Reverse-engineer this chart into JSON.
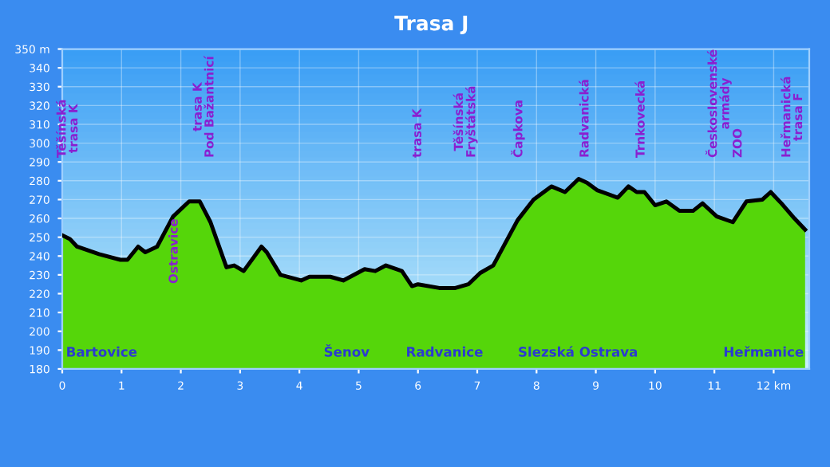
{
  "chart_data": {
    "type": "area",
    "title": "Trasa J",
    "x": [
      0,
      0.13,
      0.25,
      0.62,
      0.98,
      1.1,
      1.28,
      1.4,
      1.6,
      1.87,
      2.14,
      2.32,
      2.5,
      2.77,
      2.9,
      3.06,
      3.36,
      3.45,
      3.68,
      4.03,
      4.17,
      4.52,
      4.74,
      5.1,
      5.28,
      5.46,
      5.73,
      5.9,
      6.0,
      6.36,
      6.63,
      6.85,
      7.05,
      7.27,
      7.68,
      7.95,
      8.25,
      8.48,
      8.71,
      8.85,
      9.02,
      9.37,
      9.55,
      9.69,
      9.82,
      10.0,
      10.19,
      10.41,
      10.64,
      10.8,
      11.04,
      11.31,
      11.54,
      11.81,
      11.95,
      12.13,
      12.35,
      12.53
    ],
    "series": [
      {
        "color": "#55d60a",
        "values": [
          251,
          249,
          245,
          241,
          238,
          238,
          245,
          242,
          245,
          261,
          269,
          269,
          258,
          234,
          235,
          232,
          245,
          242,
          230,
          227,
          229,
          229,
          227,
          233,
          232,
          235,
          232,
          224,
          225,
          223,
          223,
          225,
          231,
          235,
          259,
          270,
          277,
          274,
          281,
          279,
          275,
          271,
          277,
          274,
          274,
          267,
          269,
          264,
          264,
          268,
          261,
          258,
          269,
          270,
          274,
          268,
          260,
          254
        ]
      }
    ],
    "xlim": [
      0,
      12.6
    ],
    "xticks": [
      0,
      1,
      2,
      3,
      4,
      5,
      6,
      7,
      8,
      9,
      10,
      11,
      {
        "value": 12,
        "label": "12 km"
      }
    ],
    "ylim": [
      180,
      350
    ],
    "yticks": [
      180,
      190,
      200,
      210,
      220,
      230,
      240,
      250,
      260,
      270,
      280,
      290,
      300,
      310,
      320,
      330,
      340,
      {
        "value": 350,
        "label": "350 m"
      }
    ],
    "grid": true,
    "annotations": [
      "Těšínská\ntrasa K",
      "Ostravice",
      "trasa K\nPod Bažantnicí",
      "trasa K",
      "Těšínská\nFryštátská",
      "Čapkova",
      "Radvanická",
      "Trnkovecká",
      "Československé\narmády",
      "ZOO",
      "Heřmanická\ntrasa F",
      "Bartovice",
      "Šenov",
      "Radvanice",
      "Slezská Ostrava",
      "Heřmanice"
    ]
  }
}
